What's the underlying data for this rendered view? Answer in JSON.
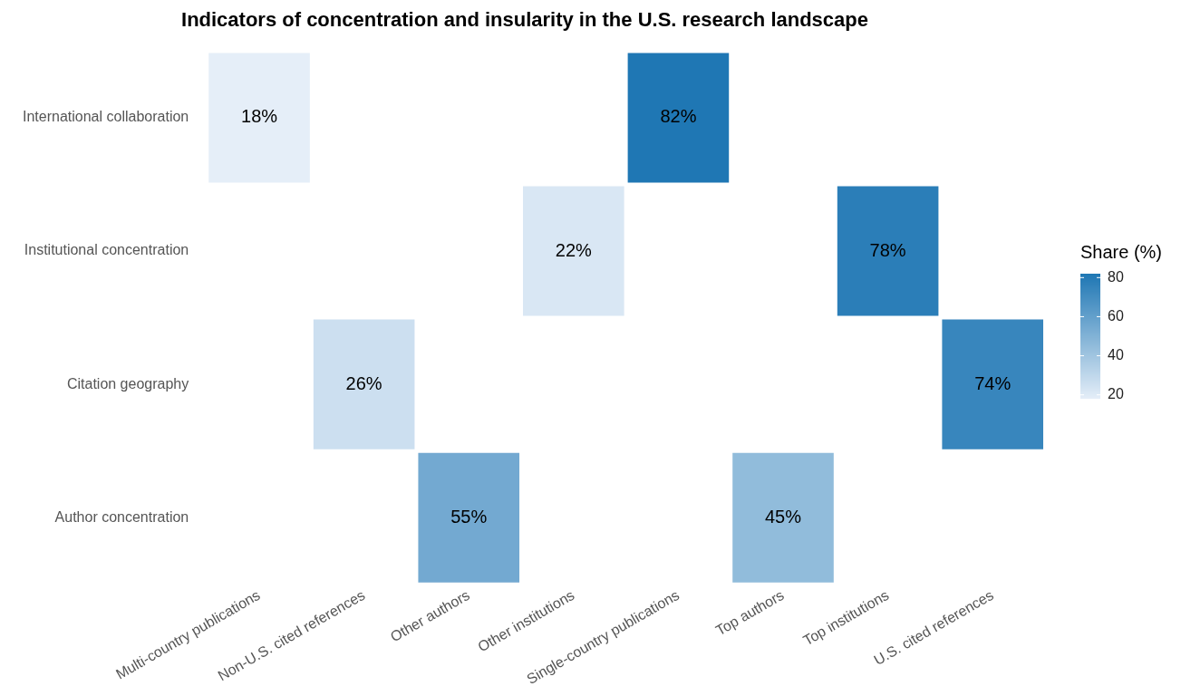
{
  "chart_data": {
    "type": "heatmap",
    "title": "Indicators of concentration and insularity in the U.S. research landscape",
    "categories": [
      "Multi-country publications",
      "Non-U.S. cited references",
      "Other authors",
      "Other institutions",
      "Single-country publications",
      "Top authors",
      "Top institutions",
      "U.S. cited references"
    ],
    "y_categories": [
      "International collaboration",
      "Institutional concentration",
      "Citation geography",
      "Author concentration"
    ],
    "cells": [
      [
        18,
        null,
        null,
        null,
        82,
        null,
        null,
        null
      ],
      [
        null,
        null,
        null,
        22,
        null,
        null,
        78,
        null
      ],
      [
        null,
        26,
        null,
        null,
        null,
        null,
        null,
        74
      ],
      [
        null,
        null,
        55,
        null,
        null,
        45,
        null,
        null
      ]
    ],
    "cell_labels": [
      [
        "18%",
        null,
        null,
        null,
        "82%",
        null,
        null,
        null
      ],
      [
        null,
        null,
        null,
        "22%",
        null,
        null,
        "78%",
        null
      ],
      [
        null,
        "26%",
        null,
        null,
        null,
        null,
        null,
        "74%"
      ],
      [
        null,
        null,
        "55%",
        null,
        null,
        "45%",
        null,
        null
      ]
    ],
    "clabel": "Share (%)",
    "clim": [
      18,
      82
    ],
    "cticks": [
      20,
      40,
      60,
      80
    ]
  }
}
